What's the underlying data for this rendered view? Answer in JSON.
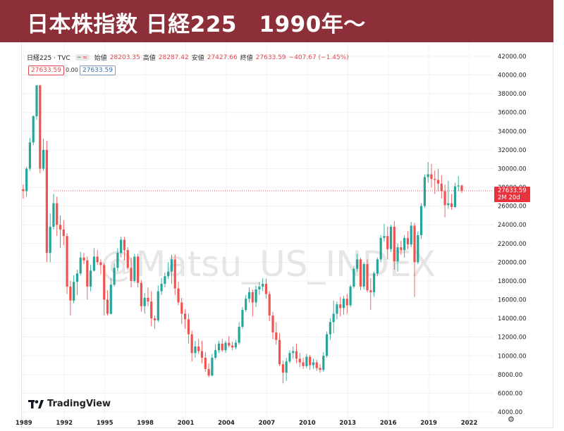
{
  "title": "日本株指数 日経225　1990年〜",
  "legend": {
    "symbol": "日経225 · TVC",
    "open_label": "始値",
    "open_value": "28203.35",
    "high_label": "高値",
    "high_value": "28287.42",
    "low_label": "安値",
    "low_value": "27427.66",
    "close_label": "終値",
    "close_value": "27633.59",
    "change": "−407.67 (−1.45%)"
  },
  "price_box": "27633.59",
  "zero_value": "0.00",
  "price_box2": "27633.59",
  "last_price_tag": "27633.59",
  "last_price_countdown": "2M 20d",
  "watermark": "@Matsu_US_INDEX",
  "brand": "TradingView",
  "colors": {
    "banner": "#8c2f38",
    "up": "#26a69a",
    "down": "#ef5350",
    "last_line": "#e8323e"
  },
  "chart_data": {
    "type": "candlestick",
    "title": "日本株指数 日経225　1990年〜",
    "x_axis_labels": [
      "1989",
      "1992",
      "1995",
      "1998",
      "2001",
      "2004",
      "2007",
      "2010",
      "2013",
      "2016",
      "2019",
      "2022"
    ],
    "y_axis_labels": [
      "4000.00",
      "6000.00",
      "8000.00",
      "10000.00",
      "12000.00",
      "14000.00",
      "16000.00",
      "18000.00",
      "20000.00",
      "22000.00",
      "24000.00",
      "26000.00",
      "28000.00",
      "30000.00",
      "32000.00",
      "34000.00",
      "36000.00",
      "38000.00",
      "40000.00",
      "42000.00"
    ],
    "ylim": [
      4000,
      42000
    ],
    "xlim": [
      1988.8,
      2023.8
    ],
    "last_price": 27633.59,
    "candles": [
      {
        "t": 1988.95,
        "o": 27800,
        "h": 28300,
        "l": 26800,
        "c": 27600
      },
      {
        "t": 1989.2,
        "o": 27600,
        "h": 30200,
        "l": 27000,
        "c": 30000
      },
      {
        "t": 1989.45,
        "o": 30000,
        "h": 33300,
        "l": 29800,
        "c": 32800
      },
      {
        "t": 1989.7,
        "o": 32800,
        "h": 35700,
        "l": 32500,
        "c": 35600
      },
      {
        "t": 1989.95,
        "o": 35600,
        "h": 38957,
        "l": 35200,
        "c": 38900
      },
      {
        "t": 1990.2,
        "o": 38900,
        "h": 38950,
        "l": 29500,
        "c": 30000
      },
      {
        "t": 1990.45,
        "o": 30000,
        "h": 33200,
        "l": 29800,
        "c": 32000
      },
      {
        "t": 1990.7,
        "o": 32000,
        "h": 33000,
        "l": 20000,
        "c": 21000
      },
      {
        "t": 1990.95,
        "o": 21000,
        "h": 25200,
        "l": 20000,
        "c": 23800
      },
      {
        "t": 1991.2,
        "o": 23800,
        "h": 27300,
        "l": 23500,
        "c": 26300
      },
      {
        "t": 1991.45,
        "o": 26300,
        "h": 27000,
        "l": 22800,
        "c": 24000
      },
      {
        "t": 1991.7,
        "o": 24000,
        "h": 25000,
        "l": 21500,
        "c": 23500
      },
      {
        "t": 1991.95,
        "o": 23500,
        "h": 24500,
        "l": 21800,
        "c": 22800
      },
      {
        "t": 1992.2,
        "o": 22800,
        "h": 23100,
        "l": 16600,
        "c": 17400
      },
      {
        "t": 1992.45,
        "o": 17400,
        "h": 18000,
        "l": 14300,
        "c": 15900
      },
      {
        "t": 1992.7,
        "o": 15900,
        "h": 18600,
        "l": 15600,
        "c": 17900
      },
      {
        "t": 1992.95,
        "o": 17900,
        "h": 19200,
        "l": 16500,
        "c": 18800
      },
      {
        "t": 1993.2,
        "o": 18800,
        "h": 21100,
        "l": 18600,
        "c": 20500
      },
      {
        "t": 1993.45,
        "o": 20500,
        "h": 21000,
        "l": 19800,
        "c": 20200
      },
      {
        "t": 1993.7,
        "o": 20200,
        "h": 20600,
        "l": 16000,
        "c": 17400
      },
      {
        "t": 1993.95,
        "o": 17400,
        "h": 19700,
        "l": 16900,
        "c": 19100
      },
      {
        "t": 1994.2,
        "o": 19100,
        "h": 21500,
        "l": 19000,
        "c": 20600
      },
      {
        "t": 1994.45,
        "o": 20600,
        "h": 21300,
        "l": 19700,
        "c": 20000
      },
      {
        "t": 1994.7,
        "o": 20000,
        "h": 20300,
        "l": 18700,
        "c": 19700
      },
      {
        "t": 1994.95,
        "o": 19700,
        "h": 19900,
        "l": 14300,
        "c": 16000
      },
      {
        "t": 1995.2,
        "o": 16000,
        "h": 17000,
        "l": 14300,
        "c": 14500
      },
      {
        "t": 1995.45,
        "o": 14500,
        "h": 18300,
        "l": 14400,
        "c": 17600
      },
      {
        "t": 1995.7,
        "o": 17600,
        "h": 19900,
        "l": 17400,
        "c": 19400
      },
      {
        "t": 1995.95,
        "o": 19400,
        "h": 21500,
        "l": 19000,
        "c": 21000
      },
      {
        "t": 1996.2,
        "o": 21000,
        "h": 22750,
        "l": 20500,
        "c": 22400
      },
      {
        "t": 1996.45,
        "o": 22400,
        "h": 22700,
        "l": 20200,
        "c": 21300
      },
      {
        "t": 1996.7,
        "o": 21300,
        "h": 21600,
        "l": 19200,
        "c": 19400
      },
      {
        "t": 1996.95,
        "o": 19400,
        "h": 20500,
        "l": 17300,
        "c": 18000
      },
      {
        "t": 1997.2,
        "o": 18000,
        "h": 20900,
        "l": 17800,
        "c": 20600
      },
      {
        "t": 1997.45,
        "o": 20600,
        "h": 20900,
        "l": 17300,
        "c": 17800
      },
      {
        "t": 1997.7,
        "o": 17800,
        "h": 18100,
        "l": 14700,
        "c": 15300
      },
      {
        "t": 1997.95,
        "o": 15300,
        "h": 16700,
        "l": 14500,
        "c": 16200
      },
      {
        "t": 1998.2,
        "o": 16200,
        "h": 17300,
        "l": 15300,
        "c": 15800
      },
      {
        "t": 1998.45,
        "o": 15800,
        "h": 16900,
        "l": 13200,
        "c": 14000
      },
      {
        "t": 1998.7,
        "o": 14000,
        "h": 14300,
        "l": 12900,
        "c": 13800
      },
      {
        "t": 1998.95,
        "o": 13800,
        "h": 17500,
        "l": 13600,
        "c": 16900
      },
      {
        "t": 1999.2,
        "o": 16900,
        "h": 18300,
        "l": 16500,
        "c": 17700
      },
      {
        "t": 1999.45,
        "o": 17700,
        "h": 18900,
        "l": 17300,
        "c": 18500
      },
      {
        "t": 1999.7,
        "o": 18500,
        "h": 20000,
        "l": 18200,
        "c": 19000
      },
      {
        "t": 1999.95,
        "o": 19000,
        "h": 20800,
        "l": 17700,
        "c": 20300
      },
      {
        "t": 2000.2,
        "o": 20300,
        "h": 20833,
        "l": 16500,
        "c": 17200
      },
      {
        "t": 2000.45,
        "o": 17200,
        "h": 17900,
        "l": 15400,
        "c": 15700
      },
      {
        "t": 2000.7,
        "o": 15700,
        "h": 16200,
        "l": 13400,
        "c": 14500
      },
      {
        "t": 2000.95,
        "o": 14500,
        "h": 15000,
        "l": 12900,
        "c": 13900
      },
      {
        "t": 2001.2,
        "o": 13900,
        "h": 14500,
        "l": 11300,
        "c": 12300
      },
      {
        "t": 2001.45,
        "o": 12300,
        "h": 12700,
        "l": 9400,
        "c": 10300
      },
      {
        "t": 2001.7,
        "o": 10300,
        "h": 11600,
        "l": 9800,
        "c": 11000
      },
      {
        "t": 2001.95,
        "o": 11000,
        "h": 11800,
        "l": 10200,
        "c": 10500
      },
      {
        "t": 2002.2,
        "o": 10500,
        "h": 11600,
        "l": 9200,
        "c": 9800
      },
      {
        "t": 2002.45,
        "o": 9800,
        "h": 10400,
        "l": 8300,
        "c": 8600
      },
      {
        "t": 2002.7,
        "o": 8600,
        "h": 9200,
        "l": 7700,
        "c": 7900
      },
      {
        "t": 2002.95,
        "o": 7900,
        "h": 10200,
        "l": 7800,
        "c": 9800
      },
      {
        "t": 2003.2,
        "o": 9800,
        "h": 11200,
        "l": 9600,
        "c": 10600
      },
      {
        "t": 2003.45,
        "o": 10600,
        "h": 11600,
        "l": 10300,
        "c": 11300
      },
      {
        "t": 2003.7,
        "o": 11300,
        "h": 11800,
        "l": 10400,
        "c": 10600
      },
      {
        "t": 2003.95,
        "o": 10600,
        "h": 11600,
        "l": 10300,
        "c": 11400
      },
      {
        "t": 2004.2,
        "o": 11400,
        "h": 12100,
        "l": 10900,
        "c": 11100
      },
      {
        "t": 2004.45,
        "o": 11100,
        "h": 11500,
        "l": 10600,
        "c": 10900
      },
      {
        "t": 2004.7,
        "o": 10900,
        "h": 11700,
        "l": 10700,
        "c": 11400
      },
      {
        "t": 2004.95,
        "o": 11400,
        "h": 13600,
        "l": 11200,
        "c": 13100
      },
      {
        "t": 2005.2,
        "o": 13100,
        "h": 15200,
        "l": 12900,
        "c": 14900
      },
      {
        "t": 2005.45,
        "o": 14900,
        "h": 16500,
        "l": 14700,
        "c": 16100
      },
      {
        "t": 2005.7,
        "o": 16100,
        "h": 17300,
        "l": 15700,
        "c": 16800
      },
      {
        "t": 2005.95,
        "o": 16800,
        "h": 17100,
        "l": 14200,
        "c": 15700
      },
      {
        "t": 2006.2,
        "o": 15700,
        "h": 17500,
        "l": 15200,
        "c": 17100
      },
      {
        "t": 2006.45,
        "o": 17100,
        "h": 17900,
        "l": 16500,
        "c": 17400
      },
      {
        "t": 2006.7,
        "o": 17400,
        "h": 18300,
        "l": 16900,
        "c": 17700
      },
      {
        "t": 2006.95,
        "o": 17700,
        "h": 18261,
        "l": 16100,
        "c": 16600
      },
      {
        "t": 2007.2,
        "o": 16600,
        "h": 16900,
        "l": 13700,
        "c": 14300
      },
      {
        "t": 2007.45,
        "o": 14300,
        "h": 14700,
        "l": 11800,
        "c": 12500
      },
      {
        "t": 2007.7,
        "o": 12500,
        "h": 13600,
        "l": 11200,
        "c": 11700
      },
      {
        "t": 2007.95,
        "o": 11700,
        "h": 12400,
        "l": 8900,
        "c": 9100
      },
      {
        "t": 2008.2,
        "o": 9100,
        "h": 9500,
        "l": 7054,
        "c": 8200
      },
      {
        "t": 2008.45,
        "o": 8200,
        "h": 9800,
        "l": 7300,
        "c": 9400
      },
      {
        "t": 2008.7,
        "o": 9400,
        "h": 10600,
        "l": 9200,
        "c": 10300
      },
      {
        "t": 2008.95,
        "o": 10300,
        "h": 11000,
        "l": 9700,
        "c": 10500
      },
      {
        "t": 2009.2,
        "o": 10500,
        "h": 11300,
        "l": 9200,
        "c": 9700
      },
      {
        "t": 2009.45,
        "o": 9700,
        "h": 10300,
        "l": 8800,
        "c": 9300
      },
      {
        "t": 2009.7,
        "o": 9300,
        "h": 9800,
        "l": 8600,
        "c": 8900
      },
      {
        "t": 2009.95,
        "o": 8900,
        "h": 10200,
        "l": 8700,
        "c": 9900
      },
      {
        "t": 2010.2,
        "o": 9900,
        "h": 10100,
        "l": 8500,
        "c": 9000
      },
      {
        "t": 2010.45,
        "o": 9000,
        "h": 9700,
        "l": 8600,
        "c": 9300
      },
      {
        "t": 2010.7,
        "o": 9300,
        "h": 9600,
        "l": 8400,
        "c": 8700
      },
      {
        "t": 2010.95,
        "o": 8700,
        "h": 9100,
        "l": 8200,
        "c": 8500
      },
      {
        "t": 2011.2,
        "o": 8500,
        "h": 10400,
        "l": 8300,
        "c": 10000
      },
      {
        "t": 2011.45,
        "o": 10000,
        "h": 12600,
        "l": 9800,
        "c": 12300
      },
      {
        "t": 2011.7,
        "o": 12300,
        "h": 14000,
        "l": 11700,
        "c": 13600
      },
      {
        "t": 2011.95,
        "o": 13600,
        "h": 15900,
        "l": 12400,
        "c": 14500
      },
      {
        "t": 2012.2,
        "o": 14500,
        "h": 15800,
        "l": 13900,
        "c": 15500
      },
      {
        "t": 2012.45,
        "o": 15500,
        "h": 16300,
        "l": 14200,
        "c": 15100
      },
      {
        "t": 2012.7,
        "o": 15100,
        "h": 16400,
        "l": 14400,
        "c": 16100
      },
      {
        "t": 2012.95,
        "o": 16100,
        "h": 16600,
        "l": 14500,
        "c": 15400
      },
      {
        "t": 2013.2,
        "o": 15400,
        "h": 17600,
        "l": 15200,
        "c": 17400
      },
      {
        "t": 2013.45,
        "o": 17400,
        "h": 19600,
        "l": 17200,
        "c": 19300
      },
      {
        "t": 2013.7,
        "o": 19300,
        "h": 20900,
        "l": 19000,
        "c": 20300
      },
      {
        "t": 2013.95,
        "o": 20300,
        "h": 20500,
        "l": 17000,
        "c": 17400
      },
      {
        "t": 2014.2,
        "o": 17400,
        "h": 20000,
        "l": 17100,
        "c": 19800
      },
      {
        "t": 2014.45,
        "o": 19800,
        "h": 20300,
        "l": 16800,
        "c": 17000
      },
      {
        "t": 2014.7,
        "o": 17000,
        "h": 18300,
        "l": 14900,
        "c": 16800
      },
      {
        "t": 2014.95,
        "o": 16800,
        "h": 19000,
        "l": 16300,
        "c": 18800
      },
      {
        "t": 2015.2,
        "o": 18800,
        "h": 20500,
        "l": 18500,
        "c": 20300
      },
      {
        "t": 2015.45,
        "o": 20300,
        "h": 22900,
        "l": 20000,
        "c": 22600
      },
      {
        "t": 2015.7,
        "o": 22600,
        "h": 24100,
        "l": 22200,
        "c": 22800
      },
      {
        "t": 2015.95,
        "o": 22800,
        "h": 23800,
        "l": 20300,
        "c": 21400
      },
      {
        "t": 2016.2,
        "o": 21400,
        "h": 24000,
        "l": 21100,
        "c": 23800
      },
      {
        "t": 2016.45,
        "o": 23800,
        "h": 24400,
        "l": 19200,
        "c": 20100
      },
      {
        "t": 2016.7,
        "o": 20100,
        "h": 22000,
        "l": 19000,
        "c": 21600
      },
      {
        "t": 2016.95,
        "o": 21600,
        "h": 22300,
        "l": 20800,
        "c": 21300
      },
      {
        "t": 2017.2,
        "o": 21300,
        "h": 22900,
        "l": 20500,
        "c": 22600
      },
      {
        "t": 2017.45,
        "o": 22600,
        "h": 23300,
        "l": 21400,
        "c": 21900
      },
      {
        "t": 2017.7,
        "o": 21900,
        "h": 24300,
        "l": 21600,
        "c": 23900
      },
      {
        "t": 2017.95,
        "o": 23900,
        "h": 24200,
        "l": 16300,
        "c": 20000
      },
      {
        "t": 2018.2,
        "o": 20000,
        "h": 23300,
        "l": 19800,
        "c": 22900
      },
      {
        "t": 2018.45,
        "o": 22900,
        "h": 26300,
        "l": 22500,
        "c": 26000
      },
      {
        "t": 2018.7,
        "o": 26000,
        "h": 29400,
        "l": 25800,
        "c": 29100
      },
      {
        "t": 2018.95,
        "o": 29100,
        "h": 30714,
        "l": 28500,
        "c": 29400
      },
      {
        "t": 2019.2,
        "o": 29400,
        "h": 30500,
        "l": 28000,
        "c": 28900
      },
      {
        "t": 2019.45,
        "o": 28900,
        "h": 29800,
        "l": 27300,
        "c": 28800
      },
      {
        "t": 2019.7,
        "o": 28800,
        "h": 30000,
        "l": 27600,
        "c": 28400
      },
      {
        "t": 2019.95,
        "o": 28400,
        "h": 29300,
        "l": 26800,
        "c": 27600
      },
      {
        "t": 2020.2,
        "o": 27600,
        "h": 28300,
        "l": 24800,
        "c": 26100
      },
      {
        "t": 2020.45,
        "o": 26100,
        "h": 28700,
        "l": 25700,
        "c": 26300
      },
      {
        "t": 2020.7,
        "o": 26300,
        "h": 27300,
        "l": 25600,
        "c": 25900
      },
      {
        "t": 2020.95,
        "o": 25900,
        "h": 28500,
        "l": 25800,
        "c": 28100
      },
      {
        "t": 2021.2,
        "o": 28100,
        "h": 29200,
        "l": 27600,
        "c": 28200
      },
      {
        "t": 2021.45,
        "o": 28200,
        "h": 28300,
        "l": 27400,
        "c": 27634
      }
    ]
  }
}
